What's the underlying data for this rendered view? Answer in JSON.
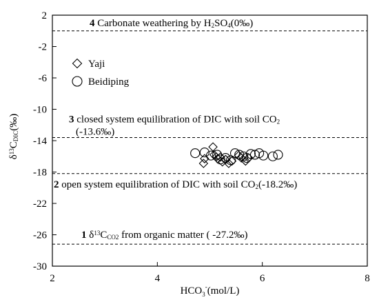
{
  "chart_data": {
    "type": "scatter",
    "xlabel": {
      "main": "HCO",
      "sub": "3",
      "sup": "-",
      "rest": "(mol/L)"
    },
    "ylabel": {
      "pre": "δ",
      "sup": "13",
      "main": "C",
      "sub": "DIC",
      "rest": "(‰)"
    },
    "xlim": [
      2,
      8
    ],
    "ylim": [
      -30,
      2
    ],
    "xticks": [
      "2",
      "4",
      "6",
      "8"
    ],
    "yticks": [
      "2",
      "-2",
      "-6",
      "-10",
      "-14",
      "-18",
      "-22",
      "-26",
      "-30"
    ],
    "grid": false,
    "legend": {
      "position": "top-left",
      "entries": [
        {
          "marker": "diamond",
          "label": "Yaji"
        },
        {
          "marker": "circle",
          "label": "Beidiping"
        }
      ]
    },
    "series": [
      {
        "name": "Yaji",
        "marker": "diamond",
        "points": [
          {
            "x": 4.88,
            "y": -16.9
          },
          {
            "x": 4.9,
            "y": -16.3
          },
          {
            "x": 5.06,
            "y": -14.8
          },
          {
            "x": 5.08,
            "y": -15.8
          },
          {
            "x": 5.12,
            "y": -16.1
          },
          {
            "x": 5.15,
            "y": -16.3
          },
          {
            "x": 5.2,
            "y": -16.1
          },
          {
            "x": 5.24,
            "y": -16.7
          },
          {
            "x": 5.3,
            "y": -16.4
          },
          {
            "x": 5.36,
            "y": -16.9
          },
          {
            "x": 5.42,
            "y": -16.6
          },
          {
            "x": 5.55,
            "y": -15.9
          },
          {
            "x": 5.6,
            "y": -16.2
          },
          {
            "x": 5.68,
            "y": -16.6
          },
          {
            "x": 5.74,
            "y": -16.2
          }
        ]
      },
      {
        "name": "Beidiping",
        "marker": "circle",
        "points": [
          {
            "x": 4.72,
            "y": -15.6
          },
          {
            "x": 4.9,
            "y": -15.5
          },
          {
            "x": 5.02,
            "y": -15.9
          },
          {
            "x": 5.14,
            "y": -15.8
          },
          {
            "x": 5.2,
            "y": -16.4
          },
          {
            "x": 5.3,
            "y": -16.2
          },
          {
            "x": 5.4,
            "y": -16.5
          },
          {
            "x": 5.48,
            "y": -15.6
          },
          {
            "x": 5.56,
            "y": -15.8
          },
          {
            "x": 5.64,
            "y": -16.0
          },
          {
            "x": 5.7,
            "y": -16.2
          },
          {
            "x": 5.78,
            "y": -15.7
          },
          {
            "x": 5.86,
            "y": -15.8
          },
          {
            "x": 5.94,
            "y": -15.6
          },
          {
            "x": 6.02,
            "y": -15.9
          },
          {
            "x": 6.2,
            "y": -16.0
          },
          {
            "x": 6.3,
            "y": -15.8
          }
        ]
      }
    ],
    "reference_lines": [
      {
        "y": 0,
        "label_bold": "4",
        "label_parts": [
          [
            "Carbonate weathering by H",
            "n"
          ],
          [
            "2",
            "sub"
          ],
          [
            "SO",
            "n"
          ],
          [
            "4",
            "sub"
          ],
          [
            "(0‰)",
            "n"
          ]
        ]
      },
      {
        "y": -13.6,
        "label_bold": "3",
        "label_parts": [
          [
            "closed system equilibration of DIC with soil CO",
            "n"
          ],
          [
            "2",
            "sub"
          ]
        ],
        "label_line2": "(-13.6‰)"
      },
      {
        "y": -18.2,
        "label_bold": "2",
        "label_parts": [
          [
            "open system equilibration of DIC with soil CO",
            "n"
          ],
          [
            "2",
            "sub"
          ],
          [
            "(-18.2‰)",
            "n"
          ]
        ]
      },
      {
        "y": -27.2,
        "label_bold": "1",
        "label_parts": [
          [
            "δ",
            "n"
          ],
          [
            "13",
            "sup"
          ],
          [
            "C",
            "n"
          ],
          [
            "CO2",
            "sub"
          ],
          [
            " from organic matter ( -27.2‰)",
            "n"
          ]
        ]
      }
    ]
  }
}
